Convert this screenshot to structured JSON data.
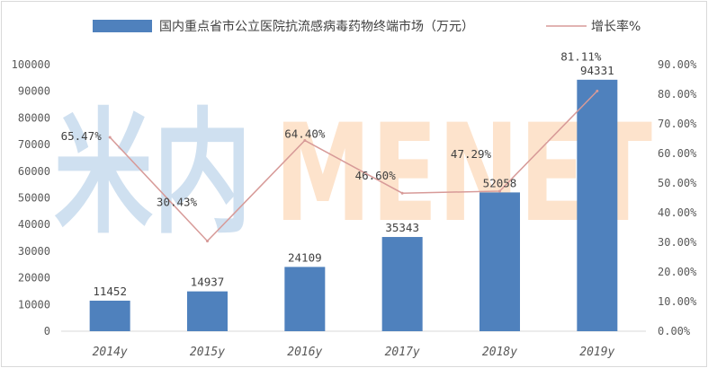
{
  "chart_data": {
    "type": "bar",
    "categories": [
      "2014y",
      "2015y",
      "2016y",
      "2017y",
      "2018y",
      "2019y"
    ],
    "series": [
      {
        "name": "国内重点省市公立医院抗流感病毒药物终端市场（万元）",
        "type": "bar",
        "axis": "left",
        "color": "#4f81bd",
        "values": [
          11452,
          14937,
          24109,
          35343,
          52058,
          94331
        ],
        "labels": [
          "11452",
          "14937",
          "24109",
          "35343",
          "52058",
          "94331"
        ]
      },
      {
        "name": "增长率%",
        "type": "line",
        "axis": "right",
        "color": "#d79a98",
        "values": [
          65.47,
          30.43,
          64.4,
          46.6,
          47.29,
          81.11
        ],
        "labels": [
          "65.47%",
          "30.43%",
          "64.40%",
          "46.60%",
          "47.29%",
          "81.11%"
        ]
      }
    ],
    "y_left": {
      "range": [
        0,
        100000
      ],
      "ticks": [
        "0",
        "10000",
        "20000",
        "30000",
        "40000",
        "50000",
        "60000",
        "70000",
        "80000",
        "90000",
        "100000"
      ]
    },
    "y_right": {
      "range": [
        0,
        90
      ],
      "ticks": [
        "0.00%",
        "10.00%",
        "20.00%",
        "30.00%",
        "40.00%",
        "50.00%",
        "60.00%",
        "70.00%",
        "80.00%",
        "90.00%"
      ]
    },
    "grid": false,
    "legend": "top"
  },
  "watermark": {
    "text": "米内MENET",
    "color_left": "#cfe0f0",
    "color_right": "#fde3cc"
  }
}
